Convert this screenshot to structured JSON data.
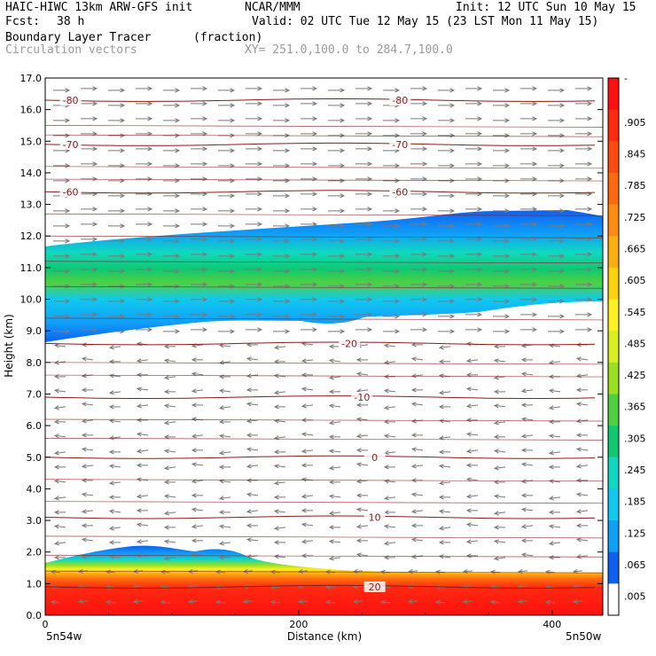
{
  "header": {
    "model": "HAIC-HIWC 13km ARW-GFS init",
    "org": "NCAR/MMM",
    "init": "Init: 12 UTC Sun 10 May 15",
    "fcst_label": "Fcst:",
    "fcst_value": "38 h",
    "valid": "Valid: 02 UTC Tue 12 May 15 (23 LST Mon 11 May 15)",
    "field": "Boundary Layer Tracer",
    "units": "(fraction)",
    "overlay": "Circulation vectors",
    "xy": "XY= 251.0,100.0 to 284.7,100.0"
  },
  "chart_data": {
    "type": "heatmap",
    "xlabel": "Distance (km)",
    "ylabel": "Height (km)",
    "xlim": [
      0,
      440
    ],
    "ylim": [
      0,
      17
    ],
    "x_ticks": [
      0,
      200,
      400
    ],
    "y_ticks": [
      "0.0",
      "1.0",
      "2.0",
      "3.0",
      "4.0",
      "5.0",
      "6.0",
      "7.0",
      "8.0",
      "9.0",
      "10.0",
      "11.0",
      "12.0",
      "13.0",
      "14.0",
      "15.0",
      "16.0",
      "17.0"
    ],
    "x_end_labels": [
      "5n54w",
      "5n50w"
    ],
    "colorbar_labels": [
      "-",
      ".905",
      ".845",
      ".785",
      ".725",
      ".665",
      ".605",
      ".545",
      ".485",
      ".425",
      ".365",
      ".305",
      ".245",
      ".185",
      ".125",
      ".065",
      ".005"
    ],
    "colorbar_colors": [
      "#ff1010",
      "#ff2a10",
      "#ff4a10",
      "#ff6a10",
      "#ff8c10",
      "#ffae10",
      "#ffd210",
      "#fff020",
      "#d8f020",
      "#9ae020",
      "#50d040",
      "#10c870",
      "#10d8c0",
      "#10c8f0",
      "#10a0f8",
      "#1060f0",
      "#ffffff"
    ],
    "temperature_contours": [
      {
        "label": "-80",
        "height_km": 16.3,
        "label_x_km": [
          20,
          280
        ]
      },
      {
        "label": "-70",
        "height_km": 14.9,
        "label_x_km": [
          20,
          280
        ]
      },
      {
        "label": "-60",
        "height_km": 13.4,
        "label_x_km": [
          20,
          280
        ]
      },
      {
        "label": "-20",
        "height_km": 8.6,
        "label_x_km": [
          240
        ]
      },
      {
        "label": "-10",
        "height_km": 6.9,
        "label_x_km": [
          250
        ]
      },
      {
        "label": "0",
        "height_km": 5.0,
        "label_x_km": [
          260
        ]
      },
      {
        "label": "10",
        "height_km": 3.1,
        "label_x_km": [
          260
        ]
      },
      {
        "label": "20",
        "height_km": 0.9,
        "label_x_km": [
          260
        ]
      }
    ]
  }
}
